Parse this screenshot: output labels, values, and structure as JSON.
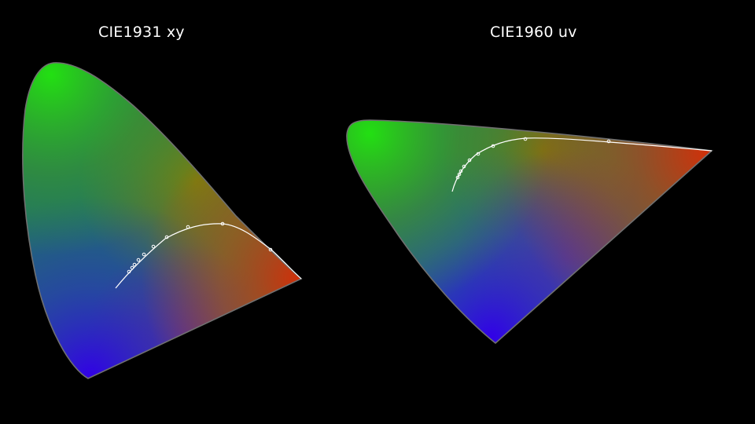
{
  "titles": {
    "left": "CIE1931 xy",
    "right": "CIE1960 uv"
  },
  "colors": {
    "background": "#000000",
    "outline": "#6f6f6f",
    "locus": "#ffffff",
    "green": "#22e012",
    "olive": "#7a8a00",
    "red_orange": "#c8380a",
    "blue": "#2e00e8",
    "purple": "#7a1a82",
    "teal": "#1c7a7a"
  }
}
